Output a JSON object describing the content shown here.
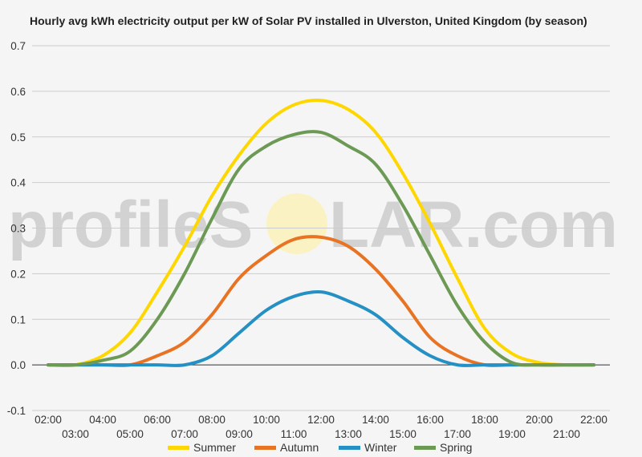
{
  "chart_data": {
    "type": "line",
    "title": "Hourly avg kWh electricity output per kW of Solar PV installed in Ulverston, United Kingdom (by season)",
    "watermark": {
      "left": "profileS",
      "right": "LAR.com"
    },
    "xlabel": "",
    "ylabel": "",
    "ylim": [
      -0.1,
      0.7
    ],
    "yticks": [
      "-0.1",
      "0.0",
      "0.1",
      "0.2",
      "0.3",
      "0.4",
      "0.5",
      "0.6",
      "0.7"
    ],
    "grid": true,
    "legend_position": "bottom",
    "categories": [
      "02:00",
      "03:00",
      "04:00",
      "05:00",
      "06:00",
      "07:00",
      "08:00",
      "09:00",
      "10:00",
      "11:00",
      "12:00",
      "13:00",
      "14:00",
      "15:00",
      "16:00",
      "17:00",
      "18:00",
      "19:00",
      "20:00",
      "21:00",
      "22:00"
    ],
    "series": [
      {
        "name": "Summer",
        "color": "#ffd700",
        "values": [
          0.0,
          0.0,
          0.02,
          0.07,
          0.16,
          0.26,
          0.37,
          0.46,
          0.53,
          0.57,
          0.58,
          0.56,
          0.51,
          0.42,
          0.31,
          0.19,
          0.08,
          0.025,
          0.005,
          0.0,
          0.0
        ]
      },
      {
        "name": "Autumn",
        "color": "#e87323",
        "values": [
          0.0,
          0.0,
          0.0,
          0.0,
          0.02,
          0.05,
          0.11,
          0.19,
          0.24,
          0.275,
          0.28,
          0.26,
          0.21,
          0.14,
          0.06,
          0.02,
          0.0,
          0.0,
          0.0,
          0.0,
          0.0
        ]
      },
      {
        "name": "Winter",
        "color": "#2590c3",
        "values": [
          0.0,
          0.0,
          0.0,
          0.0,
          0.0,
          0.0,
          0.02,
          0.07,
          0.12,
          0.15,
          0.16,
          0.14,
          0.11,
          0.06,
          0.02,
          0.0,
          0.0,
          0.0,
          0.0,
          0.0,
          0.0
        ]
      },
      {
        "name": "Spring",
        "color": "#6c9a55",
        "values": [
          0.0,
          0.0,
          0.01,
          0.03,
          0.1,
          0.2,
          0.32,
          0.43,
          0.48,
          0.505,
          0.51,
          0.48,
          0.44,
          0.35,
          0.24,
          0.13,
          0.05,
          0.005,
          0.0,
          0.0,
          0.0
        ]
      }
    ]
  }
}
